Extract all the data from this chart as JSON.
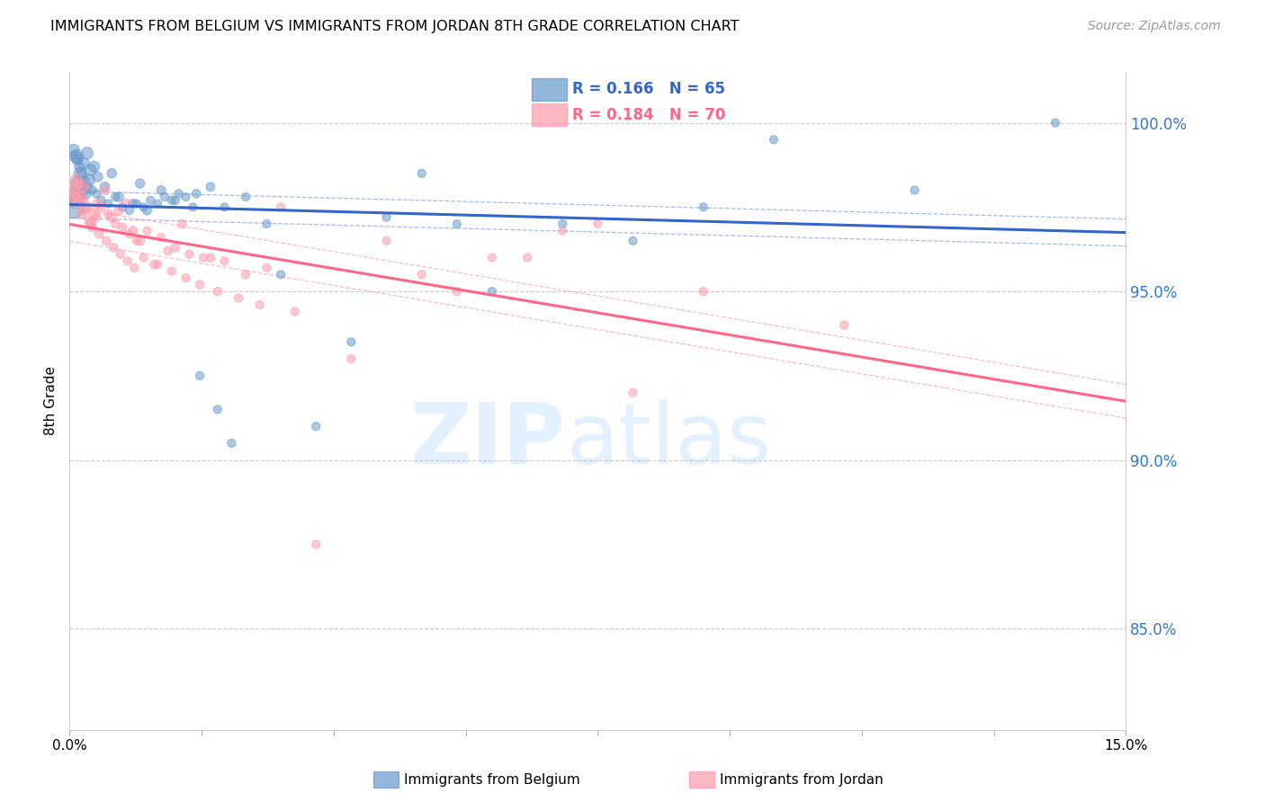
{
  "title": "IMMIGRANTS FROM BELGIUM VS IMMIGRANTS FROM JORDAN 8TH GRADE CORRELATION CHART",
  "source": "Source: ZipAtlas.com",
  "ylabel": "8th Grade",
  "xlim": [
    0.0,
    15.0
  ],
  "ylim": [
    82.0,
    101.5
  ],
  "R_belgium": 0.166,
  "N_belgium": 65,
  "R_jordan": 0.184,
  "N_jordan": 70,
  "color_belgium": "#6699CC",
  "color_jordan": "#FF99AA",
  "line_color_belgium": "#3366CC",
  "line_color_jordan": "#FF6688",
  "background_color": "#FFFFFF",
  "belgium_x": [
    0.1,
    0.15,
    0.2,
    0.25,
    0.3,
    0.05,
    0.08,
    0.12,
    0.18,
    0.22,
    0.28,
    0.35,
    0.4,
    0.5,
    0.6,
    0.7,
    0.9,
    1.0,
    1.1,
    1.3,
    1.5,
    1.8,
    2.0,
    2.2,
    2.5,
    0.06,
    0.09,
    0.11,
    0.14,
    0.17,
    0.21,
    0.26,
    0.32,
    0.38,
    0.45,
    0.55,
    0.65,
    0.75,
    0.85,
    0.95,
    1.05,
    1.15,
    1.25,
    1.35,
    1.45,
    1.55,
    1.65,
    1.75,
    1.85,
    2.1,
    2.3,
    2.8,
    3.0,
    3.5,
    4.0,
    4.5,
    5.0,
    5.5,
    6.0,
    7.0,
    8.0,
    9.0,
    10.0,
    12.0,
    14.0
  ],
  "belgium_y": [
    99.0,
    98.5,
    98.8,
    99.1,
    98.6,
    97.5,
    97.8,
    98.2,
    98.0,
    97.9,
    98.3,
    98.7,
    98.4,
    98.1,
    98.5,
    97.8,
    97.6,
    98.2,
    97.4,
    98.0,
    97.7,
    97.9,
    98.1,
    97.5,
    97.8,
    99.2,
    99.0,
    98.9,
    98.7,
    98.5,
    98.3,
    98.1,
    98.0,
    97.9,
    97.7,
    97.6,
    97.8,
    97.5,
    97.4,
    97.6,
    97.5,
    97.7,
    97.6,
    97.8,
    97.7,
    97.9,
    97.8,
    97.5,
    92.5,
    91.5,
    90.5,
    97.0,
    95.5,
    91.0,
    93.5,
    97.2,
    98.5,
    97.0,
    95.0,
    97.0,
    96.5,
    97.5,
    99.5,
    98.0,
    100.0
  ],
  "belgium_size": [
    30,
    25,
    20,
    22,
    20,
    80,
    60,
    35,
    25,
    22,
    20,
    18,
    16,
    15,
    14,
    14,
    13,
    14,
    13,
    13,
    12,
    12,
    12,
    11,
    11,
    20,
    18,
    17,
    16,
    15,
    14,
    13,
    12,
    12,
    12,
    11,
    11,
    11,
    11,
    11,
    11,
    11,
    11,
    11,
    11,
    11,
    11,
    11,
    11,
    11,
    11,
    11,
    11,
    11,
    11,
    11,
    11,
    11,
    11,
    11,
    11,
    11,
    11,
    11,
    11
  ],
  "jordan_x": [
    0.05,
    0.1,
    0.15,
    0.2,
    0.25,
    0.3,
    0.35,
    0.4,
    0.5,
    0.6,
    0.7,
    0.8,
    0.9,
    1.0,
    1.2,
    1.4,
    1.6,
    2.0,
    2.5,
    3.0,
    0.08,
    0.12,
    0.18,
    0.22,
    0.28,
    0.38,
    0.45,
    0.55,
    0.65,
    0.75,
    0.85,
    0.95,
    1.1,
    1.3,
    1.5,
    1.7,
    1.9,
    2.2,
    2.8,
    3.5,
    4.0,
    5.0,
    6.0,
    7.0,
    8.0,
    0.06,
    0.11,
    0.17,
    0.32,
    0.42,
    0.52,
    0.62,
    0.72,
    0.82,
    0.92,
    1.05,
    1.25,
    1.45,
    1.65,
    1.85,
    2.1,
    2.4,
    2.7,
    3.2,
    4.5,
    5.5,
    6.5,
    7.5,
    9.0,
    11.0
  ],
  "jordan_y": [
    98.0,
    98.3,
    97.8,
    98.1,
    97.5,
    97.0,
    97.3,
    97.6,
    98.0,
    97.2,
    97.4,
    97.6,
    96.8,
    96.5,
    95.8,
    96.2,
    97.0,
    96.0,
    95.5,
    97.5,
    97.9,
    98.2,
    97.7,
    97.4,
    97.1,
    97.2,
    97.5,
    97.3,
    97.0,
    96.9,
    96.7,
    96.5,
    96.8,
    96.6,
    96.3,
    96.1,
    96.0,
    95.9,
    95.7,
    87.5,
    93.0,
    95.5,
    96.0,
    96.8,
    92.0,
    97.8,
    97.6,
    97.3,
    96.9,
    96.7,
    96.5,
    96.3,
    96.1,
    95.9,
    95.7,
    96.0,
    95.8,
    95.6,
    95.4,
    95.2,
    95.0,
    94.8,
    94.6,
    94.4,
    96.5,
    95.0,
    96.0,
    97.0,
    95.0,
    94.0
  ],
  "jordan_size": [
    30,
    25,
    22,
    20,
    18,
    18,
    16,
    16,
    15,
    15,
    14,
    14,
    13,
    13,
    12,
    12,
    12,
    12,
    12,
    11,
    20,
    18,
    16,
    15,
    14,
    13,
    12,
    12,
    12,
    12,
    11,
    11,
    11,
    11,
    11,
    11,
    11,
    11,
    11,
    11,
    11,
    11,
    11,
    11,
    11,
    18,
    16,
    15,
    13,
    12,
    12,
    12,
    11,
    11,
    11,
    11,
    11,
    11,
    11,
    11,
    11,
    11,
    11,
    11,
    11,
    11,
    11,
    11,
    11,
    11
  ],
  "ytick_vals": [
    85.0,
    90.0,
    95.0,
    100.0
  ],
  "legend_label_belgium": "Immigrants from Belgium",
  "legend_label_jordan": "Immigrants from Jordan"
}
